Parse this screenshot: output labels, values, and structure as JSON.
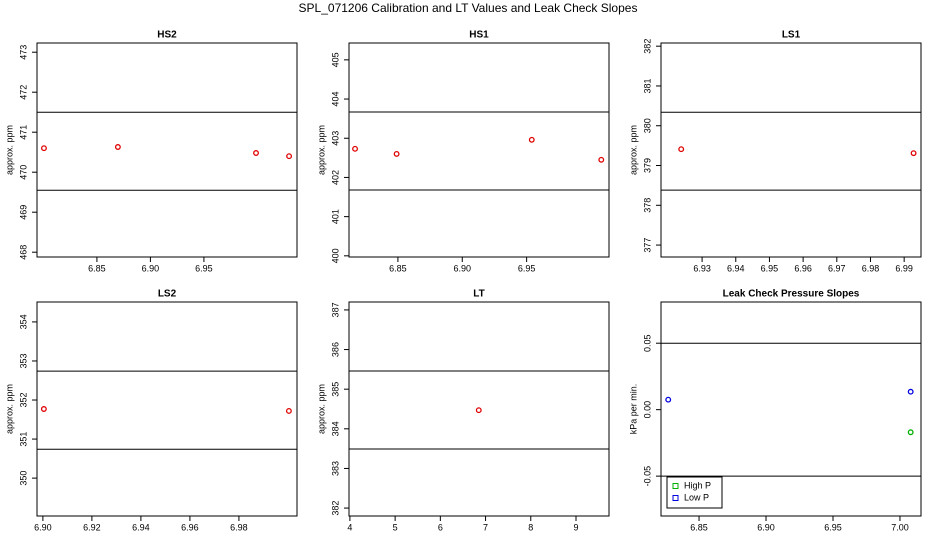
{
  "title": "SPL_071206  Calibration and LT Values and Leak Check Slopes",
  "chart_data": [
    {
      "type": "scatter",
      "title": "HS2",
      "ylabel": "approx. ppm",
      "color": "#e00000",
      "x": [
        6.8005,
        6.8696,
        6.9987,
        7.0296
      ],
      "values": [
        470.6,
        470.63,
        470.48,
        470.4
      ],
      "hlines": [
        471.5,
        469.55
      ],
      "xlim": [
        6.794,
        7.037
      ],
      "ylim": [
        467.88,
        473.23
      ],
      "xticks": [
        6.85,
        {
          "value": 6.9,
          "label": "6.90"
        },
        6.95
      ],
      "yticks": [
        468,
        469,
        470,
        471,
        472,
        473
      ]
    },
    {
      "type": "scatter",
      "title": "HS1",
      "ylabel": "approx. ppm",
      "color": "#e00000",
      "x": [
        6.8167,
        6.849,
        6.954,
        7.008
      ],
      "values": [
        402.73,
        402.6,
        402.96,
        402.45
      ],
      "hlines": [
        403.67,
        401.68
      ],
      "xlim": [
        6.812,
        7.014
      ],
      "ylim": [
        399.97,
        405.43
      ],
      "xticks": [
        6.85,
        {
          "value": 6.9,
          "label": "6.90"
        },
        6.95
      ],
      "yticks": [
        400,
        401,
        402,
        403,
        404,
        405
      ]
    },
    {
      "type": "scatter",
      "title": "LS1",
      "ylabel": "approx. ppm",
      "color": "#e00000",
      "x": [
        6.9238,
        6.9928
      ],
      "values": [
        379.41,
        379.31
      ],
      "hlines": [
        380.34,
        378.38
      ],
      "xlim": [
        6.9178,
        6.995
      ],
      "ylim": [
        376.7,
        382.08
      ],
      "xticks": [
        6.93,
        6.94,
        6.95,
        6.96,
        6.97,
        6.98,
        6.99
      ],
      "yticks": [
        377,
        378,
        379,
        380,
        381,
        382
      ]
    },
    {
      "type": "scatter",
      "title": "LS2",
      "ylabel": "approx. ppm",
      "color": "#e00000",
      "x": [
        6.9004,
        7.0004
      ],
      "values": [
        351.77,
        351.72
      ],
      "hlines": [
        352.74,
        350.74
      ],
      "xlim": [
        6.8976,
        7.0037
      ],
      "ylim": [
        349.03,
        354.51
      ],
      "xticks": [
        {
          "value": 6.9,
          "label": "6.90"
        },
        6.92,
        6.94,
        6.96,
        6.98
      ],
      "yticks": [
        350,
        351,
        352,
        353,
        354
      ]
    },
    {
      "type": "scatter",
      "title": "LT",
      "ylabel": "approx. ppm",
      "color": "#e00000",
      "x": [
        6.85
      ],
      "values": [
        384.47
      ],
      "hlines": [
        385.46,
        383.49
      ],
      "xlim": [
        3.98,
        9.73
      ],
      "ylim": [
        381.8,
        387.2
      ],
      "xticks": [
        4,
        5,
        6,
        7,
        8,
        9
      ],
      "yticks": [
        382,
        383,
        384,
        385,
        386,
        387
      ]
    },
    {
      "type": "scatter",
      "title": "Leak Check Pressure Slopes",
      "ylabel": "kPa per min.",
      "series": [
        {
          "name": "High P",
          "color": "#00b000",
          "x": [
            7.008
          ],
          "values": [
            -0.017
          ]
        },
        {
          "name": "Low P",
          "color": "#0000e0",
          "x": [
            6.827,
            7.008
          ],
          "values": [
            0.0075,
            0.0135
          ]
        }
      ],
      "legend": "bottom-left",
      "hlines": [
        0.05,
        -0.05
      ],
      "xlim": [
        6.8216,
        7.0157
      ],
      "ylim": [
        -0.08,
        0.081
      ],
      "xticks": [
        6.85,
        {
          "value": 6.9,
          "label": "6.90"
        },
        6.95,
        {
          "value": 7.0,
          "label": "7.00"
        }
      ],
      "yticks": [
        -0.05,
        {
          "value": 0,
          "label": "0.00"
        },
        0.05
      ]
    }
  ]
}
